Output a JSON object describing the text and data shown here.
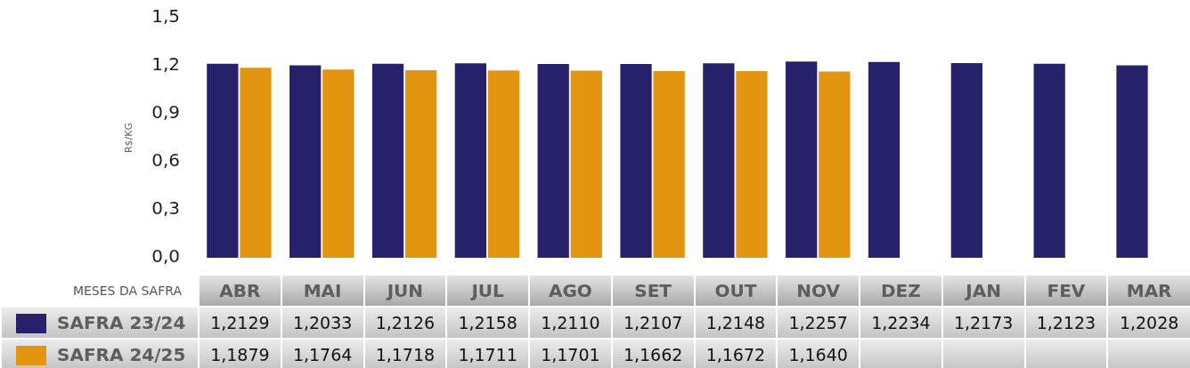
{
  "chart_data": {
    "type": "bar",
    "xlabel": "MESES DA SAFRA",
    "ylabel": "R$/KG",
    "categories": [
      "ABR",
      "MAI",
      "JUN",
      "JUL",
      "AGO",
      "SET",
      "OUT",
      "NOV",
      "DEZ",
      "JAN",
      "FEV",
      "MAR"
    ],
    "series": [
      {
        "name": "SAFRA 23/24",
        "color": "#27206a",
        "values": [
          1.2129,
          1.2033,
          1.2126,
          1.2158,
          1.211,
          1.2107,
          1.2148,
          1.2257,
          1.2234,
          1.2173,
          1.2123,
          1.2028
        ],
        "value_labels": [
          "1,2129",
          "1,2033",
          "1,2126",
          "1,2158",
          "1,2110",
          "1,2107",
          "1,2148",
          "1,2257",
          "1,2234",
          "1,2173",
          "1,2123",
          "1,2028"
        ]
      },
      {
        "name": "SAFRA 24/25",
        "color": "#e39410",
        "values": [
          1.1879,
          1.1764,
          1.1718,
          1.1711,
          1.1701,
          1.1662,
          1.1672,
          1.164,
          null,
          null,
          null,
          null
        ],
        "value_labels": [
          "1,1879",
          "1,1764",
          "1,1718",
          "1,1711",
          "1,1701",
          "1,1662",
          "1,1672",
          "1,1640",
          null,
          null,
          null,
          null
        ]
      }
    ],
    "ylim": [
      0,
      1.5
    ],
    "yticks": [
      {
        "value": 0,
        "label": "0,0"
      },
      {
        "value": 0.3,
        "label": "0,3"
      },
      {
        "value": 0.6,
        "label": "0,6"
      },
      {
        "value": 0.9,
        "label": "0,9"
      },
      {
        "value": 1.2,
        "label": "1,2"
      },
      {
        "value": 1.5,
        "label": "1,5"
      }
    ],
    "grid": false,
    "legend": "bottom left"
  }
}
